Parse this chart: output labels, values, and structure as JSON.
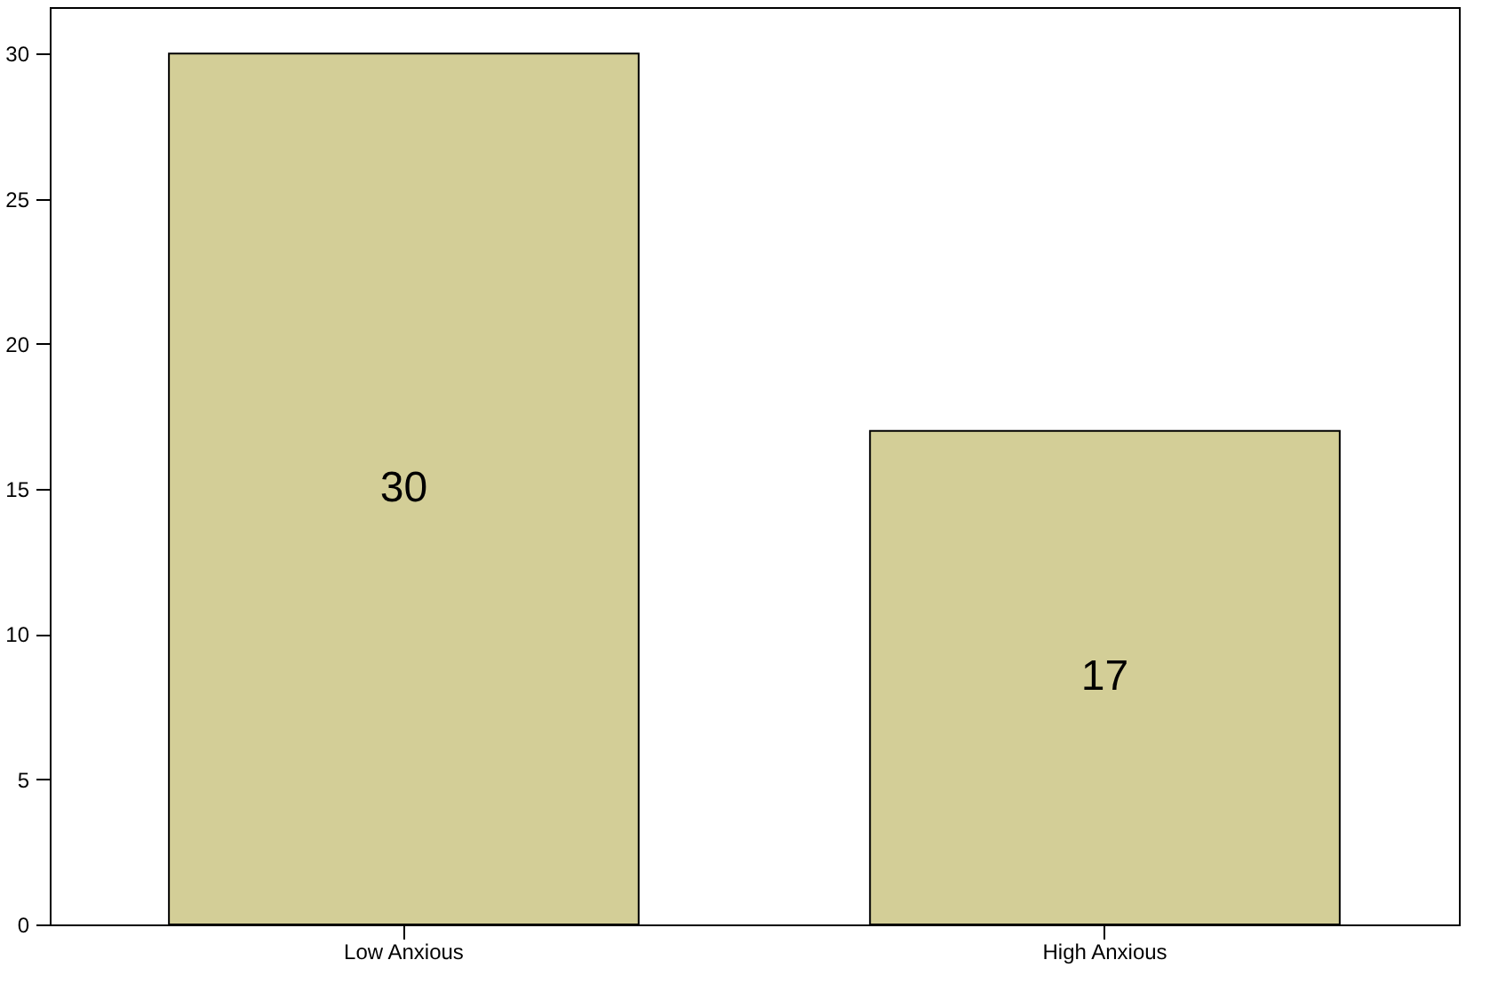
{
  "chart_data": {
    "type": "bar",
    "categories": [
      "Low Anxious",
      "High Anxious"
    ],
    "values": [
      30,
      17
    ],
    "color": "#d3ce97",
    "ylim": [
      0,
      31.6
    ],
    "yticks": [
      0,
      5,
      10,
      15,
      20,
      25,
      30
    ],
    "grid": false,
    "data_labels": true
  }
}
